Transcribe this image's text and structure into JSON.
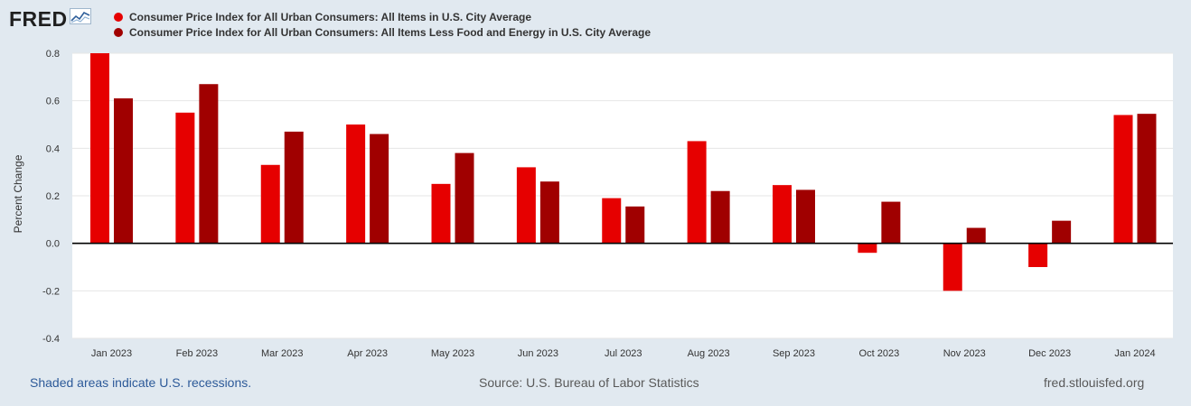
{
  "logo": {
    "text": "FRED",
    "icon": "line-chart-icon"
  },
  "colors": {
    "series1": "#e60000",
    "series2": "#a00000",
    "background": "#e1e9f0",
    "plot": "#ffffff",
    "link": "#2d5a99"
  },
  "legend": [
    {
      "label": "Consumer Price Index for All Urban Consumers: All Items in U.S. City Average"
    },
    {
      "label": "Consumer Price Index for All Urban Consumers: All Items Less Food and Energy in U.S. City Average"
    }
  ],
  "footer": {
    "recessions": "Shaded areas indicate U.S. recessions.",
    "source": "Source: U.S. Bureau of Labor Statistics",
    "site": "fred.stlouisfed.org"
  },
  "chart_data": {
    "type": "bar",
    "title": "",
    "xlabel": "",
    "ylabel": "Percent Change",
    "ylim": [
      -0.4,
      0.8
    ],
    "yticks": [
      0.8,
      0.6,
      0.4,
      0.2,
      0.0,
      -0.2,
      -0.4
    ],
    "ytick_labels": [
      "0.8",
      "0.6",
      "0.4",
      "0.2",
      "0.0",
      "-0.2",
      "-0.4"
    ],
    "grid": true,
    "categories": [
      "Jan 2023",
      "Feb 2023",
      "Mar 2023",
      "Apr 2023",
      "May 2023",
      "Jun 2023",
      "Jul 2023",
      "Aug 2023",
      "Sep 2023",
      "Oct 2023",
      "Nov 2023",
      "Dec 2023",
      "Jan 2024"
    ],
    "series": [
      {
        "name": "Consumer Price Index for All Urban Consumers: All Items in U.S. City Average",
        "values": [
          0.8,
          0.55,
          0.33,
          0.5,
          0.25,
          0.32,
          0.19,
          0.43,
          0.245,
          -0.04,
          -0.2,
          -0.1,
          0.54
        ]
      },
      {
        "name": "Consumer Price Index for All Urban Consumers: All Items Less Food and Energy in U.S. City Average",
        "values": [
          0.61,
          0.67,
          0.47,
          0.46,
          0.38,
          0.26,
          0.155,
          0.22,
          0.225,
          0.175,
          0.065,
          0.095,
          0.545
        ]
      }
    ]
  }
}
